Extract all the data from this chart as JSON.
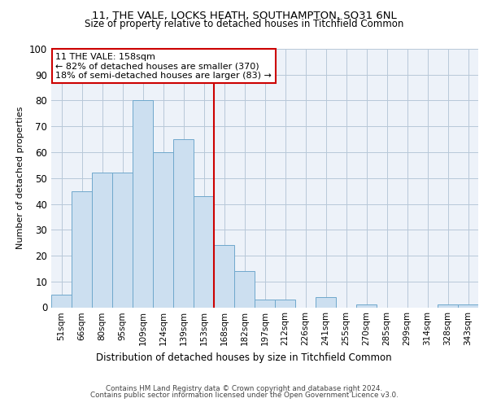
{
  "title1": "11, THE VALE, LOCKS HEATH, SOUTHAMPTON, SO31 6NL",
  "title2": "Size of property relative to detached houses in Titchfield Common",
  "xlabel": "Distribution of detached houses by size in Titchfield Common",
  "ylabel": "Number of detached properties",
  "footer1": "Contains HM Land Registry data © Crown copyright and database right 2024.",
  "footer2": "Contains public sector information licensed under the Open Government Licence v3.0.",
  "annotation_line1": "11 THE VALE: 158sqm",
  "annotation_line2": "← 82% of detached houses are smaller (370)",
  "annotation_line3": "18% of semi-detached houses are larger (83) →",
  "bar_labels": [
    "51sqm",
    "66sqm",
    "80sqm",
    "95sqm",
    "109sqm",
    "124sqm",
    "139sqm",
    "153sqm",
    "168sqm",
    "182sqm",
    "197sqm",
    "212sqm",
    "226sqm",
    "241sqm",
    "255sqm",
    "270sqm",
    "285sqm",
    "299sqm",
    "314sqm",
    "328sqm",
    "343sqm"
  ],
  "bar_values": [
    5,
    45,
    52,
    52,
    80,
    60,
    65,
    43,
    24,
    14,
    3,
    3,
    0,
    4,
    0,
    1,
    0,
    0,
    0,
    1,
    1
  ],
  "bar_color": "#ccdff0",
  "bar_edge_color": "#6fa8cc",
  "highlight_bar_index": 7,
  "highlight_line_color": "#cc0000",
  "grid_color": "#b8c8d8",
  "background_color": "#edf2f9",
  "annotation_box_color": "#ffffff",
  "annotation_border_color": "#cc0000",
  "ylim": [
    0,
    100
  ],
  "yticks": [
    0,
    10,
    20,
    30,
    40,
    50,
    60,
    70,
    80,
    90,
    100
  ]
}
